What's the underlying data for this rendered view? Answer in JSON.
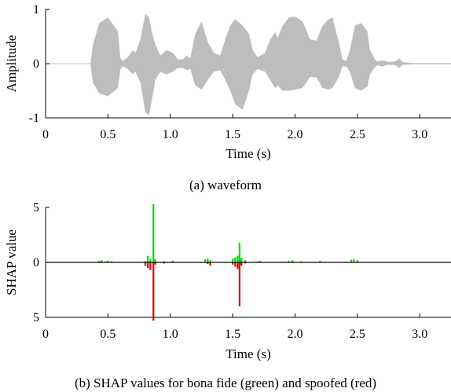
{
  "chart_data": [
    {
      "type": "area",
      "caption": "(a) waveform",
      "xlabel": "Time (s)",
      "ylabel": "Amplitude",
      "xlim": [
        0,
        3.25
      ],
      "ylim": [
        -1,
        1
      ],
      "x_ticks": [
        0,
        0.5,
        1.0,
        1.5,
        2.0,
        2.5,
        3.0
      ],
      "x_tick_labels": [
        "0",
        "0.5",
        "1.0",
        "1.5",
        "2.0",
        "2.5",
        "3.0"
      ],
      "y_ticks": [
        -1,
        0,
        1
      ],
      "y_tick_labels": [
        "-1",
        "0",
        "1"
      ],
      "color": "#bdbdbd",
      "envelope": {
        "x": [
          0.36,
          0.38,
          0.43,
          0.5,
          0.58,
          0.6,
          0.62,
          0.66,
          0.7,
          0.72,
          0.76,
          0.8,
          0.83,
          0.85,
          0.88,
          0.92,
          0.97,
          1.02,
          1.06,
          1.1,
          1.13,
          1.16,
          1.2,
          1.25,
          1.3,
          1.35,
          1.4,
          1.44,
          1.48,
          1.52,
          1.58,
          1.63,
          1.66,
          1.7,
          1.76,
          1.8,
          1.84,
          1.86,
          1.9,
          1.95,
          2.0,
          2.06,
          2.12,
          2.17,
          2.22,
          2.27,
          2.3,
          2.35,
          2.38,
          2.41,
          2.44,
          2.48,
          2.53,
          2.58,
          2.6,
          2.64,
          2.66,
          2.7,
          2.75,
          2.8,
          2.84,
          2.86,
          2.9,
          2.94,
          3.0,
          3.25
        ],
        "upper": [
          0.02,
          0.35,
          0.75,
          0.85,
          0.6,
          0.1,
          0.05,
          0.12,
          0.25,
          0.2,
          0.45,
          0.92,
          0.85,
          0.6,
          0.35,
          0.15,
          0.25,
          0.2,
          0.08,
          0.08,
          0.15,
          0.1,
          0.55,
          0.78,
          0.4,
          0.2,
          0.15,
          0.45,
          0.7,
          0.82,
          0.7,
          0.55,
          0.25,
          0.12,
          0.2,
          0.45,
          0.58,
          0.48,
          0.7,
          0.85,
          0.87,
          0.78,
          0.45,
          0.42,
          0.7,
          0.82,
          0.85,
          0.4,
          0.08,
          0.05,
          0.25,
          0.7,
          0.75,
          0.6,
          0.25,
          0.08,
          0.04,
          0.06,
          0.03,
          0.04,
          0.1,
          0.03,
          0.02,
          0.01,
          0.01,
          0.01
        ],
        "lower": [
          -0.02,
          -0.35,
          -0.55,
          -0.6,
          -0.45,
          -0.1,
          -0.05,
          -0.1,
          -0.2,
          -0.15,
          -0.35,
          -0.9,
          -0.95,
          -0.7,
          -0.3,
          -0.15,
          -0.2,
          -0.15,
          -0.08,
          -0.08,
          -0.12,
          -0.1,
          -0.4,
          -0.48,
          -0.3,
          -0.15,
          -0.12,
          -0.3,
          -0.5,
          -0.75,
          -0.85,
          -0.5,
          -0.2,
          -0.1,
          -0.15,
          -0.3,
          -0.45,
          -0.4,
          -0.5,
          -0.5,
          -0.48,
          -0.45,
          -0.25,
          -0.25,
          -0.45,
          -0.48,
          -0.45,
          -0.25,
          -0.05,
          -0.05,
          -0.15,
          -0.45,
          -0.5,
          -0.42,
          -0.2,
          -0.06,
          -0.03,
          -0.05,
          -0.02,
          -0.03,
          -0.08,
          -0.02,
          -0.02,
          -0.01,
          -0.01,
          -0.01
        ]
      }
    },
    {
      "type": "bar",
      "caption": "(b) SHAP values for bona fide (green) and spoofed (red)",
      "xlabel": "Time (s)",
      "ylabel": "SHAP value",
      "xlim": [
        0,
        3.25
      ],
      "ylim": [
        -5,
        5
      ],
      "x_ticks": [
        0,
        0.5,
        1.0,
        1.5,
        2.0,
        2.5,
        3.0
      ],
      "x_tick_labels": [
        "0",
        "0.5",
        "1.0",
        "1.5",
        "2.0",
        "2.5",
        "3.0"
      ],
      "y_ticks": [
        5,
        0,
        -5
      ],
      "y_tick_labels": [
        "5",
        "0",
        "5"
      ],
      "series": [
        {
          "color": "#00dd00",
          "x": [
            0.43,
            0.45,
            0.48,
            0.5,
            0.53,
            0.8,
            0.82,
            0.84,
            0.865,
            0.88,
            0.95,
            1.02,
            1.28,
            1.3,
            1.32,
            1.5,
            1.52,
            1.54,
            1.555,
            1.57,
            1.6,
            1.7,
            1.72,
            1.95,
            1.98,
            2.05,
            2.2,
            2.45,
            2.47,
            2.5
          ],
          "values": [
            0.15,
            0.2,
            0.1,
            0.15,
            0.1,
            0.15,
            0.6,
            0.3,
            5.3,
            0.3,
            0.1,
            0.15,
            0.3,
            0.35,
            0.2,
            0.35,
            0.45,
            0.6,
            1.8,
            0.4,
            0.2,
            0.1,
            0.15,
            0.15,
            0.2,
            0.1,
            0.15,
            0.25,
            0.3,
            0.2
          ]
        },
        {
          "color": "#dd0000",
          "x": [
            0.8,
            0.82,
            0.84,
            0.865,
            0.88,
            0.95,
            1.3,
            1.32,
            1.5,
            1.52,
            1.54,
            1.555,
            1.57,
            1.6
          ],
          "values": [
            -0.3,
            -0.5,
            -0.7,
            -5.3,
            -0.2,
            -0.1,
            -0.15,
            -0.3,
            -0.2,
            -0.4,
            -0.6,
            -4.0,
            -0.3,
            -0.1
          ]
        }
      ]
    }
  ]
}
